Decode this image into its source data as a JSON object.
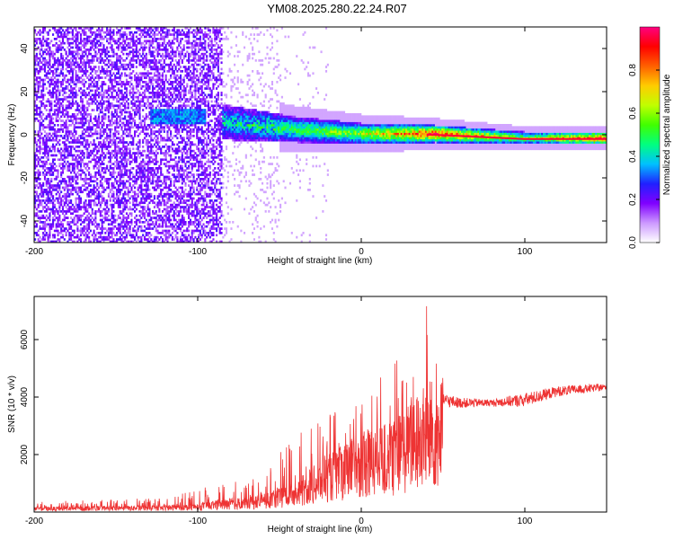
{
  "title": "YM08.2025.280.22.24.R07",
  "chart_data": [
    {
      "type": "heatmap",
      "xlabel": "Height of straight line (km)",
      "ylabel": "Frequency (Hz)",
      "xlim": [
        -200,
        150
      ],
      "ylim": [
        -50,
        50
      ],
      "xticks": [
        -200,
        -100,
        0,
        100
      ],
      "yticks": [
        -40,
        -20,
        0,
        20,
        40
      ],
      "colorbar": {
        "label": "Normalized spectral amplitude",
        "range": [
          0,
          1
        ],
        "ticks": [
          0.0,
          0.2,
          0.4,
          0.6,
          0.8
        ],
        "tick_labels": [
          "0.0",
          "0.2",
          "0.4",
          "0.6",
          "0.8"
        ],
        "colormap": [
          "#ffffff",
          "#cc99ff",
          "#8000ff",
          "#2020ff",
          "#00c0ff",
          "#00ff80",
          "#40ff00",
          "#c0ff00",
          "#ffcc00",
          "#ff6000",
          "#ff0000",
          "#ff0080"
        ]
      },
      "description_points": [
        {
          "x": -200,
          "f_center": 0,
          "amplitude": 0.15,
          "spread_hz": 50
        },
        {
          "x": -125,
          "f_center": 10,
          "amplitude": 0.35,
          "spread_hz": 6
        },
        {
          "x": -80,
          "f_center": 5,
          "amplitude": 0.45,
          "spread_hz": 8
        },
        {
          "x": -40,
          "f_center": 2,
          "amplitude": 0.55,
          "spread_hz": 6
        },
        {
          "x": 0,
          "f_center": 0,
          "amplitude": 0.65,
          "spread_hz": 5
        },
        {
          "x": 45,
          "f_center": 0,
          "amplitude": 0.95,
          "spread_hz": 4
        },
        {
          "x": 100,
          "f_center": -2,
          "amplitude": 0.6,
          "spread_hz": 3
        },
        {
          "x": 150,
          "f_center": -2,
          "amplitude": 0.95,
          "spread_hz": 3
        }
      ]
    },
    {
      "type": "line",
      "xlabel": "Height of straight line (km)",
      "ylabel": "SNR (10 * v/v)",
      "xlim": [
        -200,
        150
      ],
      "ylim": [
        0,
        7500
      ],
      "xticks": [
        -200,
        -100,
        0,
        100
      ],
      "yticks": [
        2000,
        4000,
        6000
      ],
      "series": [
        {
          "name": "SNR",
          "color": "#ee3333",
          "envelope_x": [
            -200,
            -120,
            -100,
            -80,
            -60,
            -40,
            -20,
            0,
            10,
            20,
            30,
            40,
            50,
            60,
            80,
            100,
            120,
            150
          ],
          "envelope_mean": [
            150,
            200,
            250,
            400,
            500,
            900,
            1700,
            2300,
            2500,
            2700,
            3200,
            3800,
            3900,
            3800,
            3800,
            3900,
            4200,
            4350
          ],
          "envelope_peak": [
            350,
            500,
            900,
            1000,
            1400,
            2800,
            3500,
            4200,
            4600,
            5200,
            5800,
            7400,
            4300,
            4100,
            4000,
            4300,
            4500,
            4550
          ]
        }
      ]
    }
  ]
}
